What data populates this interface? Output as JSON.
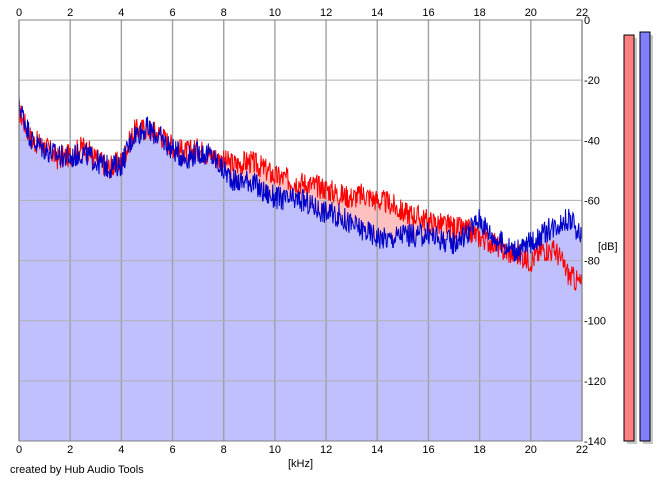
{
  "chart_data": {
    "type": "area",
    "xlabel": "[kHz]",
    "ylabel": "[dB]",
    "xlim": [
      0,
      22
    ],
    "ylim": [
      -140,
      0
    ],
    "x_ticks": [
      "0",
      "2",
      "4",
      "6",
      "8",
      "10",
      "12",
      "14",
      "16",
      "18",
      "20",
      "22"
    ],
    "y_ticks": [
      "0",
      "-20",
      "-40",
      "-60",
      "-80",
      "-100",
      "-120",
      "-140"
    ],
    "grid": true,
    "x_unit": "kHz",
    "series": [
      {
        "color": "#ff0000",
        "fill": "#ffc0c0",
        "points": [
          [
            0,
            -30
          ],
          [
            0.5,
            -40
          ],
          [
            1,
            -42
          ],
          [
            1.5,
            -46
          ],
          [
            2,
            -45
          ],
          [
            2.5,
            -42
          ],
          [
            3,
            -46
          ],
          [
            3.5,
            -49
          ],
          [
            4,
            -47
          ],
          [
            4.5,
            -37
          ],
          [
            5,
            -36
          ],
          [
            5.5,
            -38
          ],
          [
            6,
            -42
          ],
          [
            6.5,
            -44
          ],
          [
            7,
            -43
          ],
          [
            7.5,
            -45
          ],
          [
            8,
            -47
          ],
          [
            8.5,
            -48
          ],
          [
            9,
            -47
          ],
          [
            9.5,
            -49
          ],
          [
            10,
            -52
          ],
          [
            10.5,
            -53
          ],
          [
            11,
            -54
          ],
          [
            11.5,
            -55
          ],
          [
            12,
            -56
          ],
          [
            12.5,
            -58
          ],
          [
            13,
            -59
          ],
          [
            13.5,
            -58
          ],
          [
            14,
            -60
          ],
          [
            14.5,
            -61
          ],
          [
            15,
            -64
          ],
          [
            15.5,
            -65
          ],
          [
            16,
            -67
          ],
          [
            16.5,
            -68
          ],
          [
            17,
            -69
          ],
          [
            17.5,
            -70
          ],
          [
            18,
            -72
          ],
          [
            18.5,
            -74
          ],
          [
            19,
            -77
          ],
          [
            19.5,
            -78
          ],
          [
            20,
            -80
          ],
          [
            20.5,
            -76
          ],
          [
            21,
            -77
          ],
          [
            21.5,
            -85
          ],
          [
            22,
            -88
          ]
        ]
      },
      {
        "color": "#0000c8",
        "fill": "#c0c0ff",
        "points": [
          [
            0,
            -28
          ],
          [
            0.5,
            -40
          ],
          [
            1,
            -43
          ],
          [
            1.5,
            -45
          ],
          [
            2,
            -46
          ],
          [
            2.5,
            -44
          ],
          [
            3,
            -47
          ],
          [
            3.5,
            -49
          ],
          [
            4,
            -48
          ],
          [
            4.5,
            -38
          ],
          [
            5,
            -36
          ],
          [
            5.5,
            -39
          ],
          [
            6,
            -43
          ],
          [
            6.5,
            -46
          ],
          [
            7,
            -44
          ],
          [
            7.5,
            -45
          ],
          [
            8,
            -50
          ],
          [
            8.5,
            -54
          ],
          [
            9,
            -53
          ],
          [
            9.5,
            -57
          ],
          [
            10,
            -59
          ],
          [
            10.5,
            -60
          ],
          [
            11,
            -60
          ],
          [
            11.5,
            -62
          ],
          [
            12,
            -64
          ],
          [
            12.5,
            -65
          ],
          [
            13,
            -68
          ],
          [
            13.5,
            -70
          ],
          [
            14,
            -72
          ],
          [
            14.5,
            -73
          ],
          [
            15,
            -71
          ],
          [
            15.5,
            -72
          ],
          [
            16,
            -71
          ],
          [
            16.5,
            -73
          ],
          [
            17,
            -74
          ],
          [
            17.5,
            -71
          ],
          [
            18,
            -66
          ],
          [
            18.5,
            -72
          ],
          [
            19,
            -75
          ],
          [
            19.5,
            -77
          ],
          [
            20,
            -74
          ],
          [
            20.5,
            -71
          ],
          [
            21,
            -68
          ],
          [
            21.5,
            -66
          ],
          [
            22,
            -72
          ]
        ]
      }
    ],
    "level_meters": [
      {
        "color": "#ff8080",
        "level_db": -5
      },
      {
        "color": "#8080ff",
        "level_db": -4
      }
    ]
  },
  "credit": "created by Hub Audio Tools"
}
